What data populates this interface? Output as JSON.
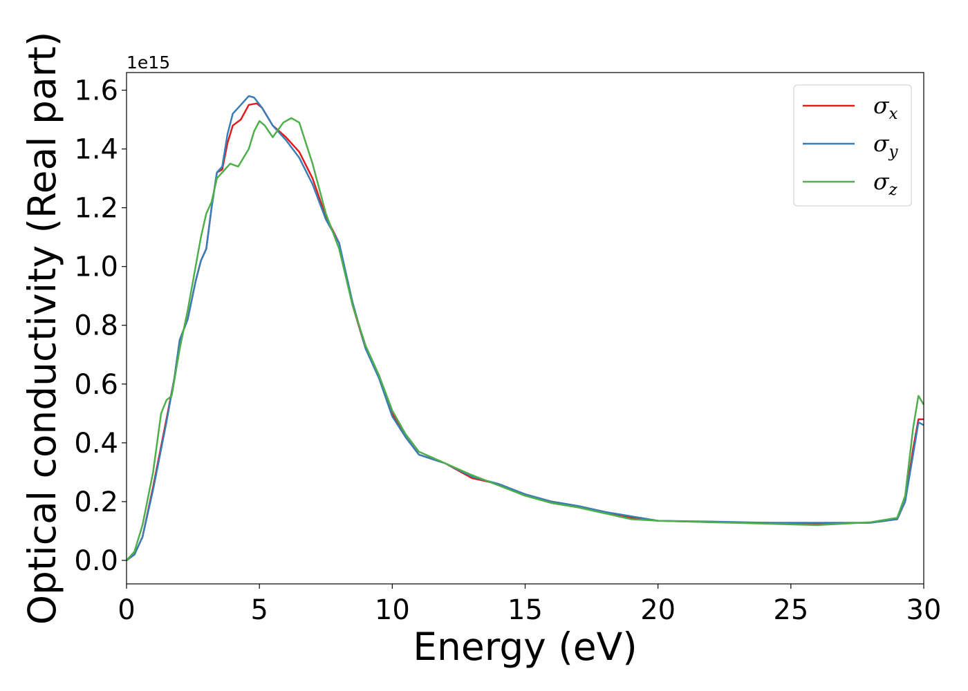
{
  "chart_data": {
    "type": "line",
    "xlabel": "Energy (eV)",
    "ylabel": "Optical conductivity (Real part)",
    "y_offset_label": "1e15",
    "xlim": [
      0,
      30
    ],
    "ylim": [
      -0.08,
      1.66
    ],
    "xticks": [
      0,
      5,
      10,
      15,
      20,
      25,
      30
    ],
    "yticks": [
      0.0,
      0.2,
      0.4,
      0.6,
      0.8,
      1.0,
      1.2,
      1.4,
      1.6
    ],
    "xtick_labels": [
      "0",
      "5",
      "10",
      "15",
      "20",
      "25",
      "30"
    ],
    "ytick_labels": [
      "0.0",
      "0.2",
      "0.4",
      "0.6",
      "0.8",
      "1.0",
      "1.2",
      "1.4",
      "1.6"
    ],
    "grid": false,
    "legend_position": "top-right",
    "series": [
      {
        "name": "σx",
        "sym": "σ",
        "sub": "x",
        "color": "#e41a1c",
        "points": [
          [
            0,
            0.0
          ],
          [
            0.3,
            0.02
          ],
          [
            0.6,
            0.08
          ],
          [
            1.0,
            0.25
          ],
          [
            1.5,
            0.48
          ],
          [
            1.8,
            0.62
          ],
          [
            2.0,
            0.75
          ],
          [
            2.3,
            0.82
          ],
          [
            2.6,
            0.95
          ],
          [
            2.8,
            1.02
          ],
          [
            3.0,
            1.06
          ],
          [
            3.2,
            1.2
          ],
          [
            3.4,
            1.32
          ],
          [
            3.6,
            1.33
          ],
          [
            3.8,
            1.42
          ],
          [
            4.0,
            1.48
          ],
          [
            4.3,
            1.5
          ],
          [
            4.6,
            1.55
          ],
          [
            4.9,
            1.555
          ],
          [
            5.1,
            1.54
          ],
          [
            5.5,
            1.48
          ],
          [
            6.0,
            1.44
          ],
          [
            6.5,
            1.39
          ],
          [
            7.0,
            1.3
          ],
          [
            7.5,
            1.17
          ],
          [
            8.0,
            1.08
          ],
          [
            8.5,
            0.87
          ],
          [
            9.0,
            0.72
          ],
          [
            9.5,
            0.63
          ],
          [
            10.0,
            0.5
          ],
          [
            10.5,
            0.42
          ],
          [
            11.0,
            0.36
          ],
          [
            12.0,
            0.33
          ],
          [
            13.0,
            0.28
          ],
          [
            14.0,
            0.26
          ],
          [
            15.0,
            0.225
          ],
          [
            16.0,
            0.2
          ],
          [
            17.0,
            0.185
          ],
          [
            18.0,
            0.165
          ],
          [
            19.0,
            0.145
          ],
          [
            20.0,
            0.135
          ],
          [
            22.0,
            0.13
          ],
          [
            24.0,
            0.128
          ],
          [
            26.0,
            0.125
          ],
          [
            28.0,
            0.128
          ],
          [
            29.0,
            0.14
          ],
          [
            29.3,
            0.2
          ],
          [
            29.6,
            0.38
          ],
          [
            29.8,
            0.48
          ],
          [
            30.0,
            0.48
          ]
        ]
      },
      {
        "name": "σy",
        "sym": "σ",
        "sub": "y",
        "color": "#377eb8",
        "points": [
          [
            0,
            0.0
          ],
          [
            0.3,
            0.02
          ],
          [
            0.6,
            0.08
          ],
          [
            1.0,
            0.24
          ],
          [
            1.5,
            0.47
          ],
          [
            1.8,
            0.62
          ],
          [
            2.0,
            0.75
          ],
          [
            2.3,
            0.82
          ],
          [
            2.6,
            0.95
          ],
          [
            2.8,
            1.02
          ],
          [
            3.0,
            1.06
          ],
          [
            3.2,
            1.2
          ],
          [
            3.4,
            1.32
          ],
          [
            3.6,
            1.34
          ],
          [
            3.8,
            1.45
          ],
          [
            4.0,
            1.52
          ],
          [
            4.3,
            1.55
          ],
          [
            4.6,
            1.58
          ],
          [
            4.8,
            1.575
          ],
          [
            5.1,
            1.54
          ],
          [
            5.5,
            1.48
          ],
          [
            6.0,
            1.43
          ],
          [
            6.5,
            1.37
          ],
          [
            7.0,
            1.28
          ],
          [
            7.5,
            1.16
          ],
          [
            8.0,
            1.08
          ],
          [
            8.5,
            0.88
          ],
          [
            9.0,
            0.72
          ],
          [
            9.5,
            0.62
          ],
          [
            10.0,
            0.49
          ],
          [
            10.5,
            0.42
          ],
          [
            11.0,
            0.36
          ],
          [
            12.0,
            0.33
          ],
          [
            13.0,
            0.285
          ],
          [
            14.0,
            0.26
          ],
          [
            15.0,
            0.225
          ],
          [
            16.0,
            0.2
          ],
          [
            17.0,
            0.185
          ],
          [
            18.0,
            0.165
          ],
          [
            19.0,
            0.15
          ],
          [
            20.0,
            0.135
          ],
          [
            22.0,
            0.132
          ],
          [
            24.0,
            0.128
          ],
          [
            26.0,
            0.128
          ],
          [
            28.0,
            0.128
          ],
          [
            29.0,
            0.14
          ],
          [
            29.3,
            0.2
          ],
          [
            29.6,
            0.36
          ],
          [
            29.8,
            0.47
          ],
          [
            30.0,
            0.46
          ]
        ]
      },
      {
        "name": "σz",
        "sym": "σ",
        "sub": "z",
        "color": "#4daf4a",
        "points": [
          [
            0,
            0.0
          ],
          [
            0.3,
            0.03
          ],
          [
            0.6,
            0.12
          ],
          [
            1.0,
            0.3
          ],
          [
            1.3,
            0.5
          ],
          [
            1.5,
            0.545
          ],
          [
            1.7,
            0.56
          ],
          [
            2.0,
            0.72
          ],
          [
            2.3,
            0.85
          ],
          [
            2.6,
            1.0
          ],
          [
            2.8,
            1.1
          ],
          [
            3.0,
            1.18
          ],
          [
            3.2,
            1.22
          ],
          [
            3.4,
            1.3
          ],
          [
            3.6,
            1.32
          ],
          [
            3.9,
            1.35
          ],
          [
            4.2,
            1.34
          ],
          [
            4.6,
            1.4
          ],
          [
            4.8,
            1.46
          ],
          [
            5.0,
            1.495
          ],
          [
            5.2,
            1.48
          ],
          [
            5.5,
            1.44
          ],
          [
            5.9,
            1.49
          ],
          [
            6.2,
            1.505
          ],
          [
            6.5,
            1.49
          ],
          [
            7.0,
            1.35
          ],
          [
            7.5,
            1.18
          ],
          [
            8.0,
            1.06
          ],
          [
            8.5,
            0.87
          ],
          [
            9.0,
            0.73
          ],
          [
            9.5,
            0.63
          ],
          [
            10.0,
            0.51
          ],
          [
            10.5,
            0.43
          ],
          [
            11.0,
            0.37
          ],
          [
            12.0,
            0.33
          ],
          [
            13.0,
            0.29
          ],
          [
            14.0,
            0.255
          ],
          [
            15.0,
            0.22
          ],
          [
            16.0,
            0.195
          ],
          [
            17.0,
            0.18
          ],
          [
            18.0,
            0.16
          ],
          [
            19.0,
            0.14
          ],
          [
            20.0,
            0.135
          ],
          [
            22.0,
            0.13
          ],
          [
            24.0,
            0.125
          ],
          [
            26.0,
            0.12
          ],
          [
            28.0,
            0.13
          ],
          [
            29.0,
            0.145
          ],
          [
            29.3,
            0.22
          ],
          [
            29.6,
            0.45
          ],
          [
            29.8,
            0.56
          ],
          [
            30.0,
            0.53
          ]
        ]
      }
    ]
  }
}
